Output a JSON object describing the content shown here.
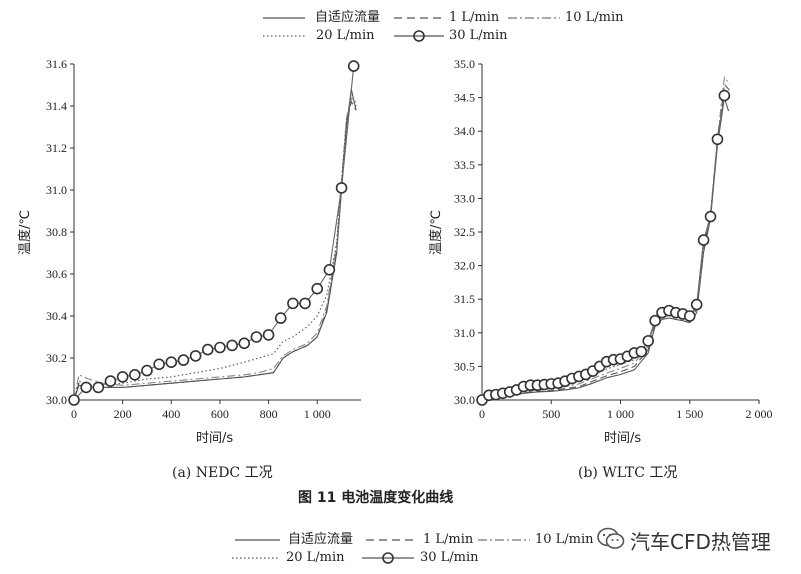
{
  "legend": {
    "items": [
      {
        "label": "自适应流量",
        "style": "solid"
      },
      {
        "label": "1 L/min",
        "style": "dash"
      },
      {
        "label": "10 L/min",
        "style": "dashdot"
      },
      {
        "label": "20 L/min",
        "style": "dot"
      },
      {
        "label": "30 L/min",
        "style": "circle"
      }
    ]
  },
  "figure": {
    "title": "图 11    电池温度变化曲线",
    "caption_a": "(a) NEDC 工况",
    "caption_b": "(b) WLTC 工况"
  },
  "watermark": {
    "text": "汽车CFD热管理",
    "icon": "wechat-icon"
  },
  "colors": {
    "line": "#555555",
    "axis": "#333333",
    "marker": "#333333"
  },
  "chart_data": [
    {
      "type": "line",
      "title": "(a) NEDC 工况",
      "xlabel": "时间/s",
      "ylabel": "温度/℃",
      "xlim": [
        0,
        1180
      ],
      "ylim": [
        30.0,
        31.6
      ],
      "xticks": [
        0,
        200,
        400,
        600,
        800,
        1000
      ],
      "xtick_labels": [
        "0",
        "200",
        "400",
        "600",
        "800",
        "1 000"
      ],
      "yticks": [
        30.0,
        30.2,
        30.4,
        30.6,
        30.8,
        31.0,
        31.2,
        31.4,
        31.6
      ],
      "ytick_labels": [
        "30.0",
        "30.2",
        "30.4",
        "30.6",
        "30.8",
        "31.0",
        "31.2",
        "31.4",
        "31.6"
      ],
      "series": [
        {
          "name": "自适应流量",
          "style": "solid",
          "x": [
            0,
            20,
            60,
            120,
            200,
            300,
            400,
            500,
            600,
            700,
            760,
            820,
            860,
            900,
            960,
            1000,
            1040,
            1080,
            1100,
            1120,
            1140,
            1160
          ],
          "y": [
            30.0,
            30.07,
            30.06,
            30.06,
            30.06,
            30.07,
            30.08,
            30.09,
            30.1,
            30.11,
            30.12,
            30.13,
            30.2,
            30.23,
            30.26,
            30.3,
            30.42,
            30.7,
            31.0,
            31.3,
            31.48,
            31.38
          ]
        },
        {
          "name": "1 L/min",
          "style": "dash",
          "x": [
            0,
            20,
            60,
            120,
            200,
            300,
            400,
            500,
            600,
            700,
            760,
            820,
            860,
            900,
            960,
            1000,
            1040,
            1080,
            1100,
            1120,
            1140,
            1160
          ],
          "y": [
            30.0,
            30.08,
            30.06,
            30.06,
            30.06,
            30.07,
            30.08,
            30.09,
            30.1,
            30.11,
            30.12,
            30.13,
            30.2,
            30.23,
            30.26,
            30.3,
            30.43,
            30.72,
            31.02,
            31.32,
            31.42,
            31.38
          ]
        },
        {
          "name": "10 L/min",
          "style": "dashdot",
          "x": [
            0,
            20,
            60,
            120,
            200,
            300,
            400,
            500,
            600,
            700,
            760,
            820,
            860,
            900,
            960,
            1000,
            1040,
            1080,
            1100,
            1120,
            1140,
            1160
          ],
          "y": [
            30.0,
            30.12,
            30.1,
            30.08,
            30.07,
            30.08,
            30.09,
            30.1,
            30.11,
            30.12,
            30.13,
            30.15,
            30.21,
            30.24,
            30.27,
            30.32,
            30.45,
            30.74,
            31.04,
            31.34,
            31.45,
            31.42
          ]
        },
        {
          "name": "20 L/min",
          "style": "dot",
          "x": [
            0,
            20,
            60,
            120,
            200,
            300,
            400,
            500,
            600,
            700,
            760,
            820,
            860,
            900,
            960,
            1000,
            1040,
            1080,
            1100,
            1120,
            1140,
            1160
          ],
          "y": [
            30.0,
            30.09,
            30.07,
            30.07,
            30.08,
            30.1,
            30.11,
            30.13,
            30.15,
            30.18,
            30.2,
            30.22,
            30.28,
            30.3,
            30.35,
            30.4,
            30.5,
            30.75,
            31.05,
            31.32,
            31.44,
            31.4
          ]
        },
        {
          "name": "30 L/min",
          "style": "circle",
          "x": [
            0,
            50,
            100,
            150,
            200,
            250,
            300,
            350,
            400,
            450,
            500,
            550,
            600,
            650,
            700,
            750,
            800,
            850,
            900,
            950,
            1000,
            1050,
            1100,
            1150
          ],
          "y": [
            30.0,
            30.06,
            30.06,
            30.09,
            30.11,
            30.12,
            30.14,
            30.17,
            30.18,
            30.19,
            30.21,
            30.24,
            30.25,
            30.26,
            30.27,
            30.3,
            30.31,
            30.39,
            30.46,
            30.46,
            30.53,
            30.62,
            31.01,
            31.59
          ]
        }
      ]
    },
    {
      "type": "line",
      "title": "(b) WLTC 工况",
      "xlabel": "时间/s",
      "ylabel": "温度/℃",
      "xlim": [
        0,
        2000
      ],
      "ylim": [
        30.0,
        35.0
      ],
      "xticks": [
        0,
        500,
        1000,
        1500,
        2000
      ],
      "xtick_labels": [
        "0",
        "500",
        "1 000",
        "1 500",
        "2 000"
      ],
      "yticks": [
        30.0,
        30.5,
        31.0,
        31.5,
        32.0,
        32.5,
        33.0,
        33.5,
        34.0,
        34.5,
        35.0
      ],
      "ytick_labels": [
        "30.0",
        "30.5",
        "31.0",
        "31.5",
        "32.0",
        "32.5",
        "33.0",
        "33.5",
        "34.0",
        "34.5",
        "35.0"
      ],
      "series": [
        {
          "name": "自适应流量",
          "style": "solid",
          "x": [
            0,
            100,
            200,
            300,
            400,
            500,
            600,
            700,
            800,
            900,
            1000,
            1100,
            1200,
            1250,
            1300,
            1350,
            1400,
            1450,
            1500,
            1550,
            1600,
            1650,
            1700,
            1750,
            1780
          ],
          "y": [
            30.0,
            30.03,
            30.06,
            30.1,
            30.12,
            30.13,
            30.15,
            30.18,
            30.25,
            30.33,
            30.38,
            30.45,
            30.7,
            31.1,
            31.2,
            31.22,
            31.2,
            31.18,
            31.15,
            31.3,
            32.2,
            32.7,
            33.8,
            34.5,
            34.3
          ]
        },
        {
          "name": "1 L/min",
          "style": "dash",
          "x": [
            0,
            100,
            200,
            300,
            400,
            500,
            600,
            700,
            800,
            900,
            1000,
            1100,
            1200,
            1250,
            1300,
            1350,
            1400,
            1450,
            1500,
            1550,
            1600,
            1650,
            1700,
            1750,
            1790
          ],
          "y": [
            30.0,
            30.04,
            30.07,
            30.11,
            30.13,
            30.14,
            30.17,
            30.2,
            30.28,
            30.36,
            30.42,
            30.5,
            30.75,
            31.15,
            31.24,
            31.26,
            31.24,
            31.22,
            31.2,
            31.35,
            32.25,
            32.75,
            33.85,
            34.7,
            34.6
          ]
        },
        {
          "name": "10 L/min",
          "style": "dashdot",
          "x": [
            0,
            100,
            200,
            300,
            400,
            500,
            600,
            700,
            800,
            900,
            1000,
            1100,
            1200,
            1250,
            1300,
            1350,
            1400,
            1450,
            1500,
            1550,
            1600,
            1650,
            1700,
            1750,
            1790
          ],
          "y": [
            30.0,
            30.05,
            30.08,
            30.12,
            30.15,
            30.17,
            30.2,
            30.24,
            30.32,
            30.4,
            30.47,
            30.55,
            30.8,
            31.18,
            31.27,
            31.29,
            31.27,
            31.25,
            31.22,
            31.38,
            32.28,
            32.78,
            33.9,
            34.8,
            34.7
          ]
        },
        {
          "name": "20 L/min",
          "style": "dot",
          "x": [
            0,
            100,
            200,
            300,
            400,
            500,
            600,
            700,
            800,
            900,
            1000,
            1100,
            1200,
            1250,
            1300,
            1350,
            1400,
            1450,
            1500,
            1550,
            1600,
            1650,
            1700,
            1750,
            1790
          ],
          "y": [
            30.0,
            30.06,
            30.1,
            30.15,
            30.18,
            30.2,
            30.24,
            30.28,
            30.37,
            30.46,
            30.53,
            30.6,
            30.85,
            31.2,
            31.3,
            31.32,
            31.3,
            31.28,
            31.25,
            31.4,
            32.3,
            32.76,
            33.86,
            34.6,
            34.5
          ]
        },
        {
          "name": "30 L/min",
          "style": "circle",
          "x": [
            0,
            50,
            100,
            150,
            200,
            250,
            300,
            350,
            400,
            450,
            500,
            550,
            600,
            650,
            700,
            750,
            800,
            850,
            900,
            950,
            1000,
            1050,
            1100,
            1150,
            1200,
            1250,
            1300,
            1350,
            1400,
            1450,
            1500,
            1550,
            1600,
            1650,
            1700,
            1750
          ],
          "y": [
            30.0,
            30.07,
            30.08,
            30.1,
            30.12,
            30.15,
            30.2,
            30.22,
            30.22,
            30.23,
            30.24,
            30.25,
            30.28,
            30.32,
            30.35,
            30.38,
            30.43,
            30.5,
            30.57,
            30.6,
            30.61,
            30.65,
            30.7,
            30.72,
            30.88,
            31.18,
            31.3,
            31.33,
            31.3,
            31.28,
            31.25,
            31.42,
            32.38,
            32.73,
            33.88,
            34.53
          ]
        }
      ]
    }
  ]
}
